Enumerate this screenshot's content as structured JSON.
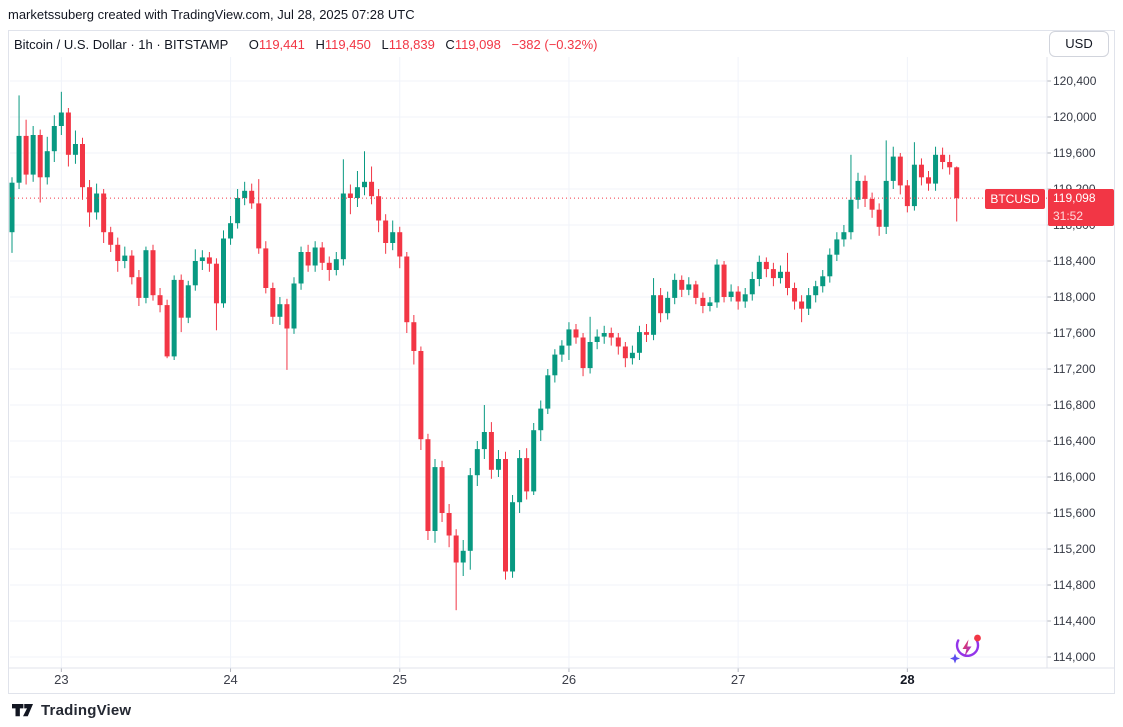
{
  "attribution": "marketssuberg created with TradingView.com, Jul 28, 2025 07:28 UTC",
  "header": {
    "title": "Bitcoin / U.S. Dollar · 1h · BITSTAMP",
    "ohlc": {
      "o_label": "O",
      "o": "119,441",
      "h_label": "H",
      "h": "119,450",
      "l_label": "L",
      "l": "118,839",
      "c_label": "C",
      "c": "119,098",
      "change": "−382 (−0.32%)"
    },
    "currency_button": "USD"
  },
  "price_line": {
    "symbol_label": "BTCUSD",
    "price": "119,098",
    "countdown": "31:52",
    "value": 119098
  },
  "footer": {
    "brand": "TradingView"
  },
  "colors": {
    "up": "#089981",
    "down": "#f23645",
    "grid": "#f0f3fa",
    "axis_border": "#e0e3eb",
    "tick_mark": "#b2b5be",
    "price_line_red": "#f23645"
  },
  "chart_data": {
    "type": "candlestick",
    "title": "Bitcoin / U.S. Dollar",
    "symbol": "BTCUSD",
    "exchange": "BITSTAMP",
    "interval": "1h",
    "current_price": 119098,
    "last_candle": {
      "open": 119441,
      "high": 119450,
      "low": 118839,
      "close": 119098
    },
    "y_axis_ticks": [
      120400,
      120000,
      119600,
      119200,
      118800,
      118400,
      118000,
      117600,
      117200,
      116800,
      116400,
      116000,
      115600,
      115200,
      114800,
      114400,
      114000
    ],
    "x_axis_day_labels": [
      "23",
      "24",
      "25",
      "26",
      "27",
      "28"
    ],
    "x_axis_day_indices": [
      7,
      31,
      55,
      79,
      103,
      127
    ],
    "bold_day_label": "28",
    "grid": true,
    "legend_position": "none",
    "candles_ohlc": [
      [
        118720,
        119330,
        118490,
        119270
      ],
      [
        119270,
        120240,
        119200,
        119790
      ],
      [
        119790,
        119970,
        119250,
        119360
      ],
      [
        119360,
        119900,
        119280,
        119800
      ],
      [
        119800,
        119860,
        119050,
        119330
      ],
      [
        119330,
        119780,
        119250,
        119620
      ],
      [
        119620,
        120020,
        119500,
        119900
      ],
      [
        119900,
        120280,
        119800,
        120050
      ],
      [
        120050,
        120100,
        119450,
        119580
      ],
      [
        119580,
        119850,
        119480,
        119700
      ],
      [
        119700,
        119770,
        119080,
        119220
      ],
      [
        119220,
        119300,
        118780,
        118940
      ],
      [
        118940,
        119260,
        118860,
        119150
      ],
      [
        119150,
        119200,
        118600,
        118720
      ],
      [
        118720,
        118780,
        118500,
        118580
      ],
      [
        118580,
        118660,
        118280,
        118400
      ],
      [
        118400,
        118560,
        118320,
        118460
      ],
      [
        118460,
        118520,
        118140,
        118220
      ],
      [
        118220,
        118300,
        117900,
        117990
      ],
      [
        117990,
        118560,
        117930,
        118520
      ],
      [
        118520,
        118580,
        117960,
        118020
      ],
      [
        118020,
        118100,
        117830,
        117910
      ],
      [
        117910,
        117970,
        117320,
        117340
      ],
      [
        117340,
        118240,
        117300,
        118190
      ],
      [
        118190,
        118250,
        117610,
        117770
      ],
      [
        117770,
        118180,
        117710,
        118130
      ],
      [
        118130,
        118530,
        118070,
        118400
      ],
      [
        118400,
        118520,
        118300,
        118440
      ],
      [
        118440,
        118500,
        118280,
        118370
      ],
      [
        118370,
        118430,
        117630,
        117930
      ],
      [
        117930,
        118740,
        117880,
        118650
      ],
      [
        118650,
        118900,
        118580,
        118820
      ],
      [
        118820,
        119200,
        118760,
        119100
      ],
      [
        119100,
        119280,
        119020,
        119180
      ],
      [
        119180,
        119260,
        118980,
        119040
      ],
      [
        119040,
        119310,
        118480,
        118540
      ],
      [
        118540,
        118620,
        118040,
        118100
      ],
      [
        118100,
        118160,
        117700,
        117780
      ],
      [
        117780,
        118000,
        117690,
        117920
      ],
      [
        117920,
        117980,
        117190,
        117650
      ],
      [
        117650,
        118220,
        117590,
        118150
      ],
      [
        118150,
        118560,
        118080,
        118500
      ],
      [
        118500,
        118580,
        118280,
        118350
      ],
      [
        118350,
        118620,
        118280,
        118550
      ],
      [
        118550,
        118610,
        118300,
        118380
      ],
      [
        118380,
        118450,
        118180,
        118300
      ],
      [
        118300,
        118500,
        118240,
        118420
      ],
      [
        118420,
        119530,
        118350,
        119150
      ],
      [
        119150,
        119250,
        118920,
        119100
      ],
      [
        119100,
        119400,
        119000,
        119220
      ],
      [
        119220,
        119620,
        119130,
        119280
      ],
      [
        119280,
        119450,
        119030,
        119120
      ],
      [
        119120,
        119200,
        118720,
        118850
      ],
      [
        118850,
        118920,
        118480,
        118600
      ],
      [
        118600,
        118850,
        118520,
        118720
      ],
      [
        118720,
        118780,
        118320,
        118450
      ],
      [
        118450,
        118500,
        117600,
        117720
      ],
      [
        117720,
        117800,
        117250,
        117400
      ],
      [
        117400,
        117450,
        116300,
        116420
      ],
      [
        116420,
        116480,
        115300,
        115400
      ],
      [
        115400,
        116200,
        115270,
        116110
      ],
      [
        116110,
        116180,
        115500,
        115600
      ],
      [
        115600,
        115700,
        115220,
        115350
      ],
      [
        115350,
        115420,
        114520,
        115050
      ],
      [
        115050,
        115300,
        114900,
        115180
      ],
      [
        115180,
        116100,
        114970,
        116020
      ],
      [
        116020,
        116400,
        115900,
        116310
      ],
      [
        116310,
        116800,
        116200,
        116500
      ],
      [
        116500,
        116610,
        115980,
        116080
      ],
      [
        116080,
        116300,
        116000,
        116200
      ],
      [
        116200,
        116280,
        114860,
        114950
      ],
      [
        114950,
        115800,
        114880,
        115720
      ],
      [
        115720,
        116300,
        115600,
        116210
      ],
      [
        116210,
        116320,
        115750,
        115840
      ],
      [
        115840,
        116600,
        115800,
        116520
      ],
      [
        116520,
        116850,
        116400,
        116760
      ],
      [
        116760,
        117200,
        116700,
        117130
      ],
      [
        117130,
        117420,
        117050,
        117360
      ],
      [
        117360,
        117520,
        117280,
        117460
      ],
      [
        117460,
        117720,
        117300,
        117640
      ],
      [
        117640,
        117700,
        117480,
        117550
      ],
      [
        117550,
        117600,
        117120,
        117210
      ],
      [
        117210,
        117780,
        117150,
        117500
      ],
      [
        117500,
        117640,
        117420,
        117560
      ],
      [
        117560,
        117680,
        117480,
        117600
      ],
      [
        117600,
        117660,
        117460,
        117550
      ],
      [
        117550,
        117600,
        117360,
        117450
      ],
      [
        117450,
        117500,
        117220,
        117320
      ],
      [
        117320,
        117460,
        117250,
        117380
      ],
      [
        117380,
        117680,
        117300,
        117610
      ],
      [
        117610,
        117700,
        117500,
        117580
      ],
      [
        117580,
        118210,
        117520,
        118020
      ],
      [
        118020,
        118100,
        117720,
        117820
      ],
      [
        117820,
        118060,
        117750,
        117990
      ],
      [
        117990,
        118260,
        117920,
        118190
      ],
      [
        118190,
        118240,
        118000,
        118080
      ],
      [
        118080,
        118220,
        118020,
        118140
      ],
      [
        118140,
        118180,
        117920,
        117990
      ],
      [
        117990,
        118050,
        117820,
        117900
      ],
      [
        117900,
        118000,
        117840,
        117940
      ],
      [
        117940,
        118420,
        117880,
        118360
      ],
      [
        118360,
        118400,
        117940,
        118000
      ],
      [
        118000,
        118140,
        117950,
        118060
      ],
      [
        118060,
        118120,
        117860,
        117950
      ],
      [
        117950,
        118100,
        117880,
        118030
      ],
      [
        118030,
        118280,
        117960,
        118200
      ],
      [
        118200,
        118460,
        118120,
        118390
      ],
      [
        118390,
        118440,
        118220,
        118310
      ],
      [
        118310,
        118380,
        118120,
        118210
      ],
      [
        118210,
        118350,
        118150,
        118280
      ],
      [
        118280,
        118490,
        118020,
        118100
      ],
      [
        118100,
        118160,
        117860,
        117950
      ],
      [
        117950,
        118020,
        117720,
        117870
      ],
      [
        117870,
        118100,
        117800,
        118020
      ],
      [
        118020,
        118180,
        117940,
        118120
      ],
      [
        118120,
        118300,
        118050,
        118230
      ],
      [
        118230,
        118540,
        118160,
        118470
      ],
      [
        118470,
        118720,
        118400,
        118640
      ],
      [
        118640,
        118800,
        118560,
        118720
      ],
      [
        118720,
        119580,
        118640,
        119080
      ],
      [
        119080,
        119380,
        118980,
        119290
      ],
      [
        119290,
        119350,
        119000,
        119090
      ],
      [
        119090,
        119160,
        118880,
        118970
      ],
      [
        118970,
        119040,
        118680,
        118780
      ],
      [
        118780,
        119740,
        118700,
        119290
      ],
      [
        119290,
        119670,
        119200,
        119560
      ],
      [
        119560,
        119600,
        119140,
        119240
      ],
      [
        119240,
        119300,
        118940,
        119010
      ],
      [
        119010,
        119720,
        118960,
        119470
      ],
      [
        119470,
        119540,
        119240,
        119330
      ],
      [
        119330,
        119400,
        119180,
        119260
      ],
      [
        119260,
        119670,
        119180,
        119580
      ],
      [
        119580,
        119660,
        119420,
        119500
      ],
      [
        119500,
        119580,
        119360,
        119441
      ],
      [
        119441,
        119450,
        118839,
        119098
      ]
    ]
  }
}
